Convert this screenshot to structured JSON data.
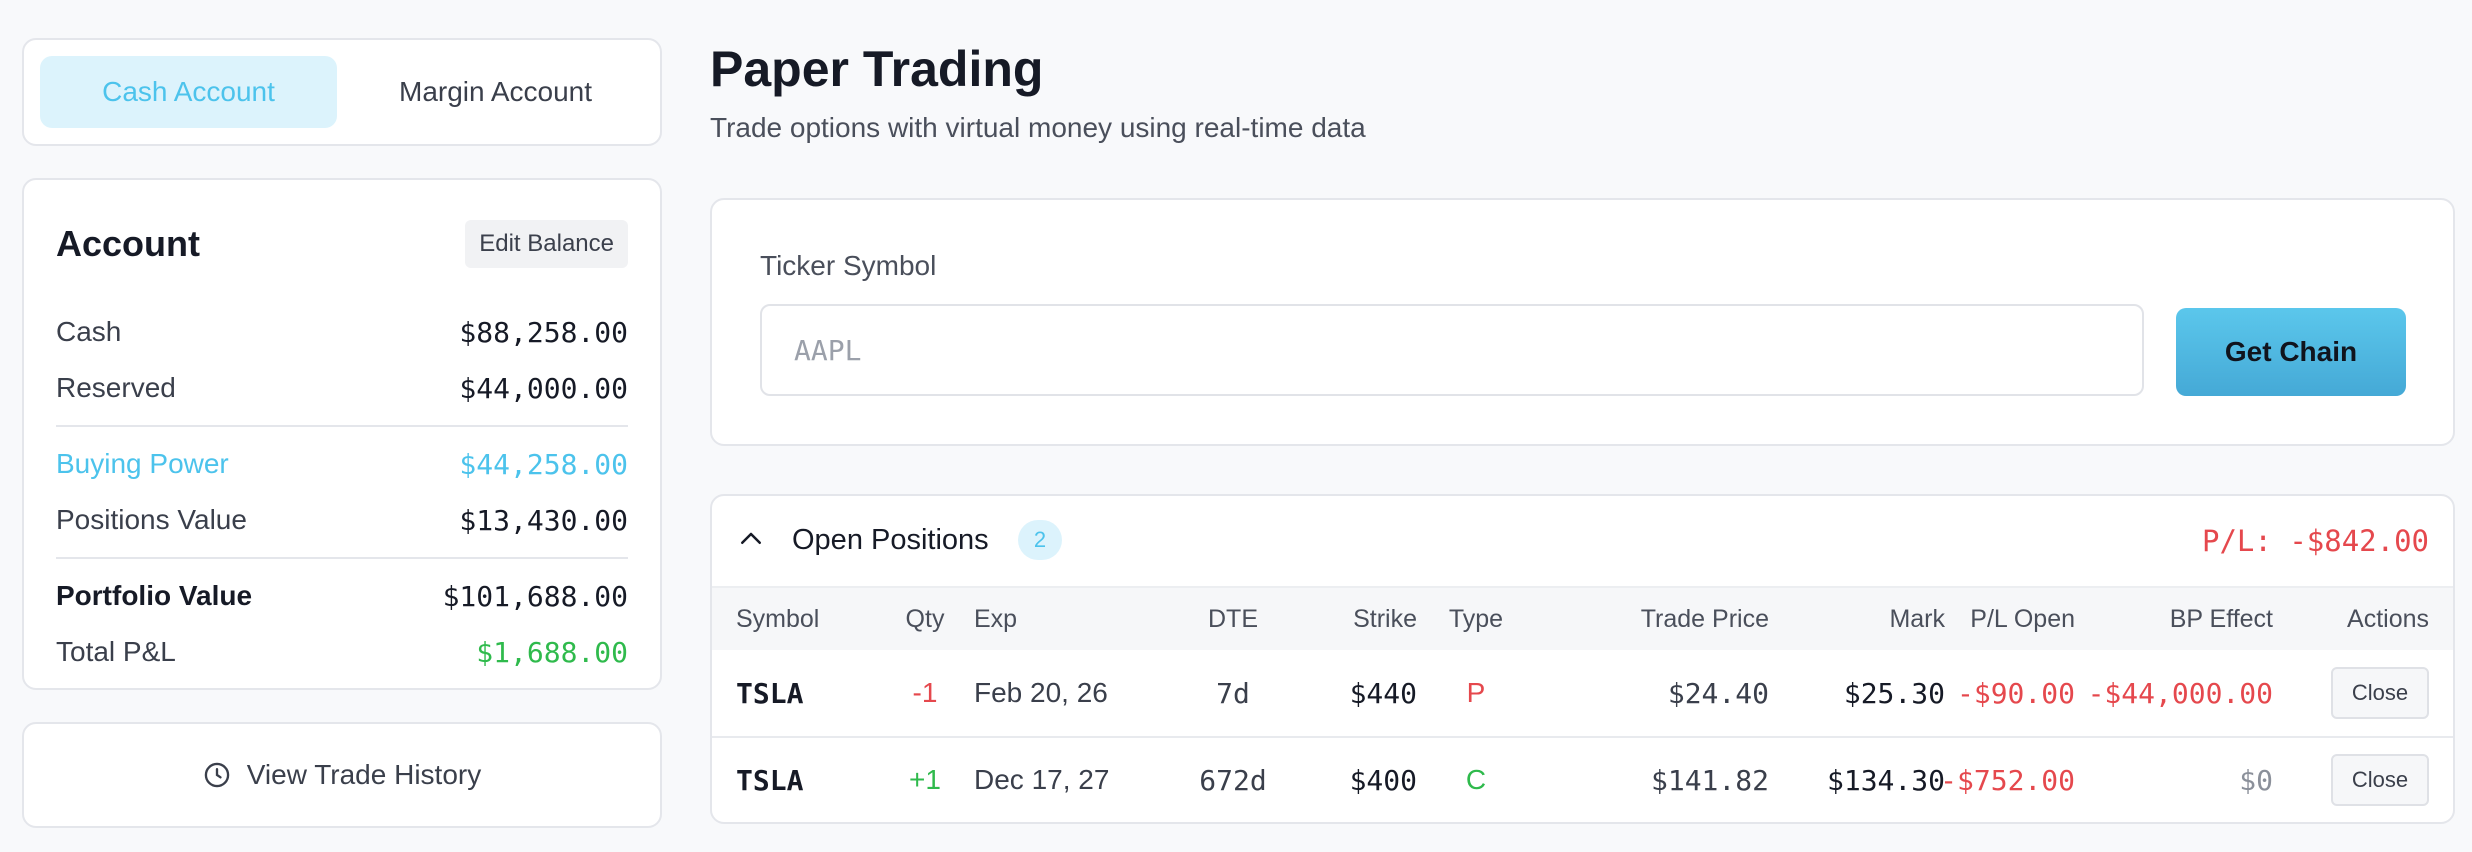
{
  "account_tabs": [
    {
      "label": "Cash Account",
      "active": true
    },
    {
      "label": "Margin Account",
      "active": false
    }
  ],
  "account": {
    "title": "Account",
    "edit_label": "Edit Balance",
    "cash": {
      "label": "Cash",
      "value": "$88,258.00"
    },
    "reserved": {
      "label": "Reserved",
      "value": "$44,000.00"
    },
    "buying_power": {
      "label": "Buying Power",
      "value": "$44,258.00"
    },
    "positions_value": {
      "label": "Positions Value",
      "value": "$13,430.00"
    },
    "portfolio_value": {
      "label": "Portfolio Value",
      "value": "$101,688.00"
    },
    "total_pl": {
      "label": "Total P&L",
      "value": "$1,688.00"
    }
  },
  "history_button": {
    "label": "View Trade History",
    "icon": "clock-icon"
  },
  "header": {
    "title": "Paper Trading",
    "subtitle": "Trade options with virtual money using real-time data"
  },
  "ticker": {
    "label": "Ticker Symbol",
    "placeholder": "AAPL",
    "value": "",
    "button_label": "Get Chain"
  },
  "positions": {
    "title": "Open Positions",
    "count": "2",
    "pl": "P/L: -$842.00",
    "columns": {
      "symbol": "Symbol",
      "qty": "Qty",
      "exp": "Exp",
      "dte": "DTE",
      "strike": "Strike",
      "type": "Type",
      "trade_price": "Trade Price",
      "mark": "Mark",
      "pl_open": "P/L Open",
      "bp_effect": "BP Effect",
      "actions": "Actions"
    },
    "rows": [
      {
        "symbol": "TSLA",
        "qty": "-1",
        "exp": "Feb 20, 26",
        "dte": "7d",
        "strike": "$440",
        "type": "P",
        "trade_price": "$24.40",
        "mark": "$25.30",
        "pl_open": "-$90.00",
        "bp_effect": "-$44,000.00",
        "action": "Close"
      },
      {
        "symbol": "TSLA",
        "qty": "+1",
        "exp": "Dec 17, 27",
        "dte": "672d",
        "strike": "$400",
        "type": "C",
        "trade_price": "$141.82",
        "mark": "$134.30",
        "pl_open": "-$752.00",
        "bp_effect": "$0",
        "action": "Close"
      }
    ]
  },
  "colors": {
    "accent": "#4cc3ec",
    "negative": "#e5484d",
    "positive": "#2fba4c",
    "button_gradient_top": "#5bc7ec",
    "button_gradient_bottom": "#45a9d6"
  }
}
